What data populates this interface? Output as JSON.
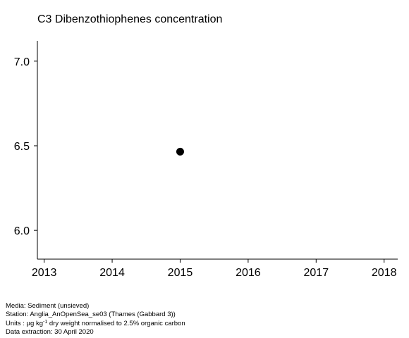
{
  "chart_data": {
    "type": "scatter",
    "title": "C3 Dibenzothiophenes concentration",
    "xlabel": "",
    "ylabel": "",
    "x_ticks": [
      "2013",
      "2014",
      "2015",
      "2016",
      "2017",
      "2018"
    ],
    "y_ticks": [
      "6.0",
      "6.5",
      "7.0"
    ],
    "xlim": [
      2012.9,
      2018.2
    ],
    "ylim": [
      5.83,
      7.12
    ],
    "grid": false,
    "points": [
      {
        "x": 2015,
        "y": 6.465
      }
    ],
    "marker_color": "#000000"
  },
  "footer": {
    "media": "Media: Sediment (unsieved)",
    "station": "Station: Anglia_AnOpenSea_se03 (Thames (Gabbard 3))",
    "units_prefix": "Units : µg kg",
    "units_sup": "-1",
    "units_suffix": " dry weight normalised to 2.5% organic carbon",
    "extraction": "Data extraction: 30 April 2020"
  }
}
